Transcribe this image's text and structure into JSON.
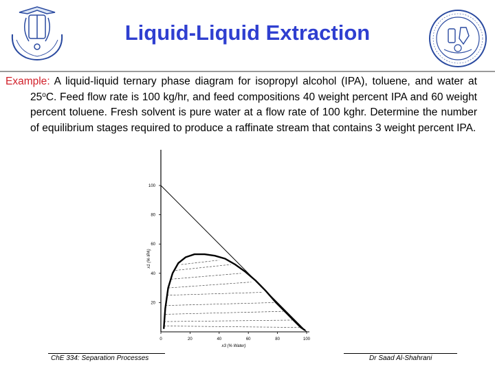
{
  "slide": {
    "title": "Liquid-Liquid Extraction",
    "problem": {
      "lead": "Example",
      "colon": ":",
      "part1": " A liquid-liquid ternary phase diagram for isopropyl alcohol (IPA), toluene, and water at 25",
      "degree_sup": "o",
      "part2": "C. Feed flow rate is 100 kg/hr, and feed compositions 40 weight percent IPA and 60 weight percent toluene. Fresh solvent is pure water at a flow rate of 100 kghr. Determine the number of equilibrium stages required to produce a raffinate stream that contains 3 weight percent IPA."
    },
    "footer": {
      "course": "ChE 334: Separation Processes",
      "author": "Dr Saad Al-Shahrani"
    }
  },
  "chart_data": {
    "type": "line",
    "xlabel": "x3 (% Water)",
    "ylabel": "x1 (% IPA)",
    "xlim": [
      0,
      100
    ],
    "ylim": [
      0,
      100
    ],
    "x_ticks": [
      "0",
      "20",
      "40",
      "60",
      "80",
      "100"
    ],
    "y_ticks": [
      "20",
      "40",
      "60",
      "80",
      "100"
    ],
    "hypotenuse": {
      "x": [
        0,
        100
      ],
      "y": [
        100,
        0
      ]
    },
    "binodal_curve": {
      "x": [
        2,
        3,
        5,
        8,
        12,
        17,
        23,
        30,
        37,
        44,
        51,
        58,
        65,
        72,
        79,
        86,
        92,
        96,
        99
      ],
      "y": [
        2,
        16,
        30,
        40,
        47,
        51,
        53,
        53,
        52,
        50,
        46,
        41,
        35,
        28,
        20,
        13,
        7,
        3,
        1
      ]
    },
    "tie_lines": [
      {
        "raffinate": [
          3,
          18
        ],
        "extract": [
          78,
          20
        ]
      },
      {
        "raffinate": [
          4,
          25
        ],
        "extract": [
          70,
          27
        ]
      },
      {
        "raffinate": [
          5,
          30
        ],
        "extract": [
          62,
          34
        ]
      },
      {
        "raffinate": [
          7,
          36
        ],
        "extract": [
          55,
          40
        ]
      },
      {
        "raffinate": [
          10,
          42
        ],
        "extract": [
          48,
          46
        ]
      },
      {
        "raffinate": [
          14,
          46
        ],
        "extract": [
          40,
          49
        ]
      },
      {
        "raffinate": [
          3,
          12
        ],
        "extract": [
          84,
          14
        ]
      },
      {
        "raffinate": [
          2,
          7
        ],
        "extract": [
          90,
          8
        ]
      },
      {
        "raffinate": [
          2,
          4
        ],
        "extract": [
          95,
          3
        ]
      }
    ]
  }
}
